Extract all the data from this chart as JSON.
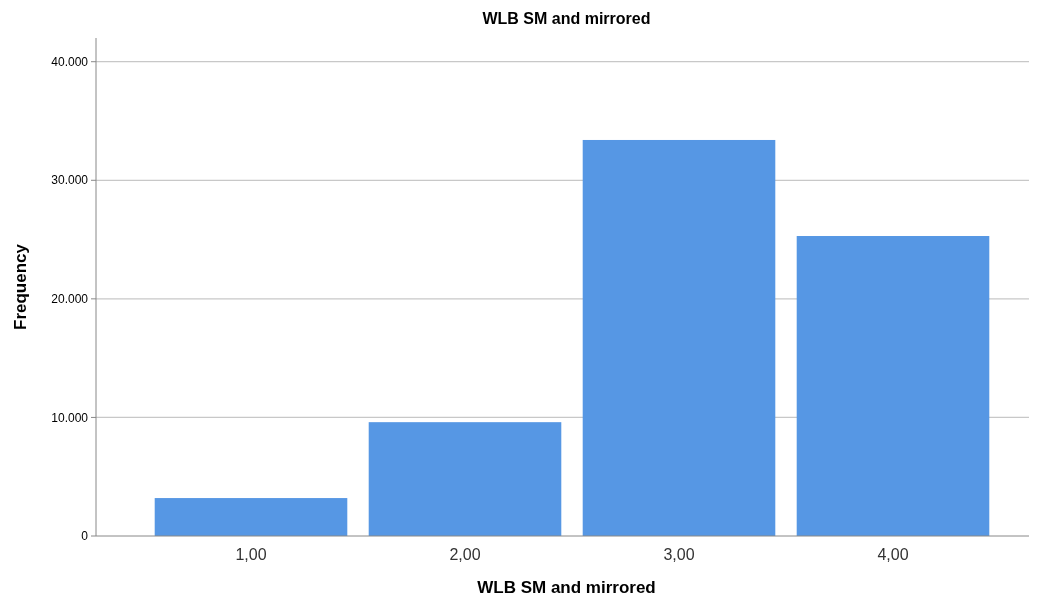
{
  "chart_data": {
    "type": "bar",
    "title": "WLB SM and mirrored",
    "xlabel": "WLB SM and mirrored",
    "ylabel": "Frequency",
    "categories": [
      "1,00",
      "2,00",
      "3,00",
      "4,00"
    ],
    "values": [
      3200,
      9600,
      33400,
      25300
    ],
    "color": "#5697e4",
    "ylim": [
      0,
      42000
    ],
    "yticks": [
      {
        "value": 0,
        "label": "0"
      },
      {
        "value": 10000,
        "label": "10.000"
      },
      {
        "value": 20000,
        "label": "20.000"
      },
      {
        "value": 30000,
        "label": "30.000"
      },
      {
        "value": 40000,
        "label": "40.000"
      }
    ],
    "grid": "y"
  }
}
